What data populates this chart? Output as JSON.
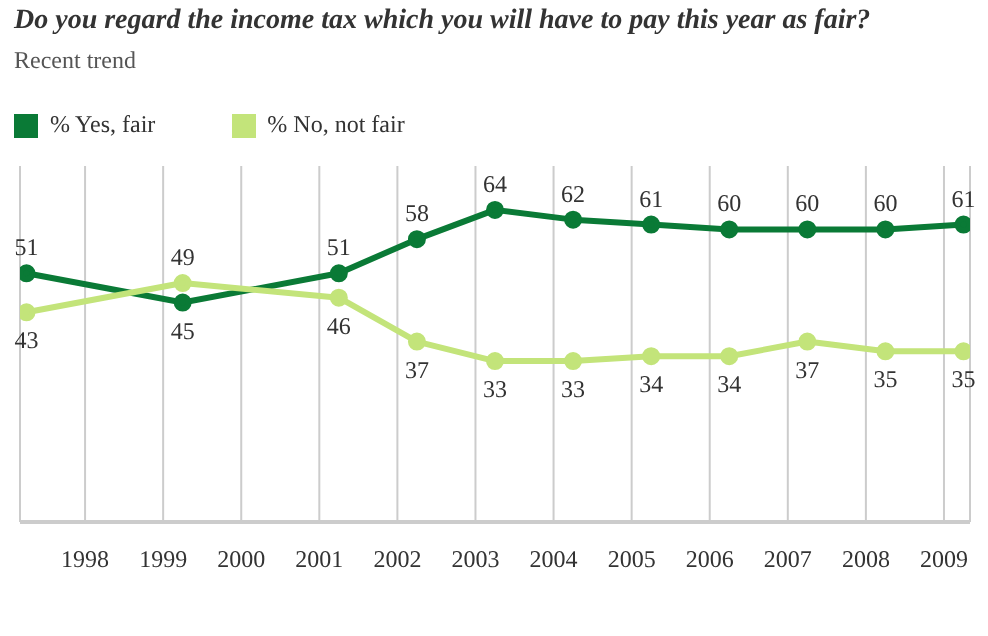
{
  "chart_data": {
    "type": "line",
    "title": "Do you regard the income tax which you will have to pay this year as fair?",
    "subtitle": "Recent trend",
    "x": [
      "1997-04",
      "1999-04",
      "2001-04",
      "2002-04",
      "2003-04",
      "2004-04",
      "2005-04",
      "2006-04",
      "2007-04",
      "2008-04",
      "2009-04"
    ],
    "series": [
      {
        "name": "% Yes, fair",
        "color": "#0a7a36",
        "values": [
          51,
          45,
          51,
          58,
          64,
          62,
          61,
          60,
          60,
          60,
          61
        ]
      },
      {
        "name": "% No, not fair",
        "color": "#c3e47a",
        "values": [
          43,
          49,
          46,
          37,
          33,
          33,
          34,
          34,
          37,
          35,
          35
        ]
      }
    ],
    "xlim": [
      "1997-03",
      "2009-05"
    ],
    "xticks": [
      "1998",
      "1999",
      "2000",
      "2001",
      "2002",
      "2003",
      "2004",
      "2005",
      "2006",
      "2007",
      "2008",
      "2009"
    ],
    "ylim": [
      0,
      73
    ],
    "grid": "x",
    "legend": "top left",
    "marker": "circle",
    "data_labels": true,
    "tick_labels": "x",
    "line_style": "solid"
  }
}
